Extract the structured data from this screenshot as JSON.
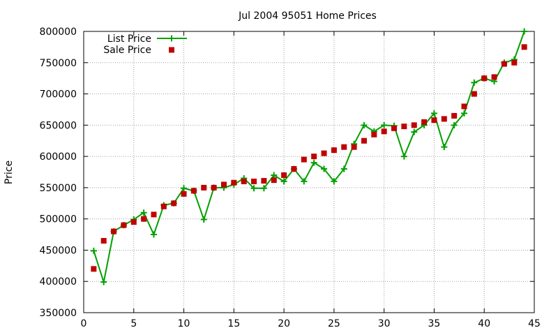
{
  "chart_data": {
    "type": "line",
    "title": "Jul 2004 95051 Home Prices",
    "xlabel": "",
    "ylabel": "Price",
    "xlim": [
      0,
      45
    ],
    "ylim": [
      350000,
      800000
    ],
    "xticks": [
      0,
      5,
      10,
      15,
      20,
      25,
      30,
      35,
      40,
      45
    ],
    "yticks": [
      350000,
      400000,
      450000,
      500000,
      550000,
      600000,
      650000,
      700000,
      750000,
      800000
    ],
    "grid": true,
    "legend_position": "top-left",
    "series": [
      {
        "name": "List Price",
        "style": "line-with-plus-markers",
        "color": "#00a000",
        "x": [
          1,
          2,
          3,
          4,
          5,
          6,
          7,
          8,
          9,
          10,
          11,
          12,
          13,
          14,
          15,
          16,
          17,
          18,
          19,
          20,
          21,
          22,
          23,
          24,
          25,
          26,
          27,
          28,
          29,
          30,
          31,
          32,
          33,
          34,
          35,
          36,
          37,
          38,
          39,
          40,
          41,
          42,
          43,
          44
        ],
        "y": [
          449000,
          399000,
          480000,
          490000,
          499000,
          510000,
          475000,
          522000,
          525000,
          549000,
          545000,
          499000,
          550000,
          550000,
          555000,
          565000,
          549000,
          549000,
          570000,
          560000,
          580000,
          560000,
          590000,
          580000,
          560000,
          580000,
          620000,
          650000,
          640000,
          650000,
          649000,
          600000,
          639000,
          650000,
          669000,
          615000,
          650000,
          669000,
          718000,
          725000,
          720000,
          750000,
          755000,
          800000
        ]
      },
      {
        "name": "Sale Price",
        "style": "square-markers",
        "color": "#c00000",
        "x": [
          1,
          2,
          3,
          4,
          5,
          6,
          7,
          8,
          9,
          10,
          11,
          12,
          13,
          14,
          15,
          16,
          17,
          18,
          19,
          20,
          21,
          22,
          23,
          24,
          25,
          26,
          27,
          28,
          29,
          30,
          31,
          32,
          33,
          34,
          35,
          36,
          37,
          38,
          39,
          40,
          41,
          42,
          43,
          44
        ],
        "y": [
          420000,
          465000,
          480000,
          490000,
          495000,
          500000,
          507000,
          520000,
          525000,
          540000,
          545000,
          550000,
          550000,
          555000,
          558000,
          560000,
          560000,
          561000,
          562000,
          570000,
          580000,
          595000,
          600000,
          605000,
          610000,
          615000,
          615000,
          625000,
          635000,
          640000,
          645000,
          648000,
          650000,
          655000,
          658000,
          660000,
          665000,
          680000,
          700000,
          725000,
          727000,
          748000,
          750000,
          775000
        ]
      }
    ]
  }
}
